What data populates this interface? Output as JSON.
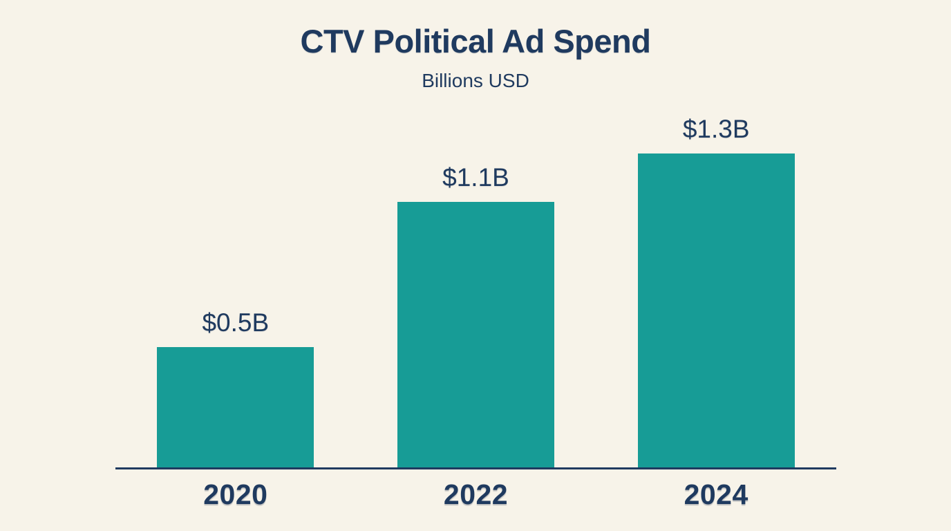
{
  "chart_data": {
    "type": "bar",
    "title": "CTV Political Ad Spend",
    "subtitle": "Billions USD",
    "categories": [
      "2020",
      "2022",
      "2024"
    ],
    "values": [
      0.5,
      1.1,
      1.3
    ],
    "value_labels": [
      "$0.5B",
      "$1.1B",
      "$1.3B"
    ],
    "ylabel": "Billions USD",
    "xlabel": "",
    "ylim": [
      0,
      1.3
    ],
    "grid": false,
    "legend": "none",
    "bar_color": "#179C96",
    "text_color": "#1F3A5F",
    "axis_color": "#1F3A5F",
    "background_color": "#F7F3E9"
  }
}
